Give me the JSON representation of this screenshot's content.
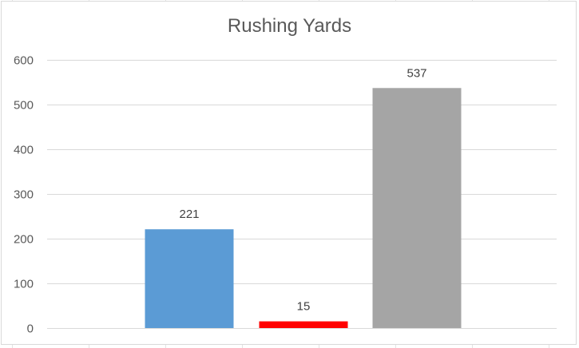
{
  "chart_data": {
    "type": "bar",
    "title": "Rushing Yards",
    "categories": [
      "",
      "",
      ""
    ],
    "values": [
      221,
      15,
      537
    ],
    "data_labels": [
      "221",
      "15",
      "537"
    ],
    "bar_colors": [
      "#5b9bd5",
      "#ff0000",
      "#a5a5a5"
    ],
    "ylim": [
      0,
      600
    ],
    "yticks": [
      0,
      100,
      200,
      300,
      400,
      500,
      600
    ],
    "grid": true,
    "legend": "none",
    "xlabel": "",
    "ylabel": ""
  }
}
